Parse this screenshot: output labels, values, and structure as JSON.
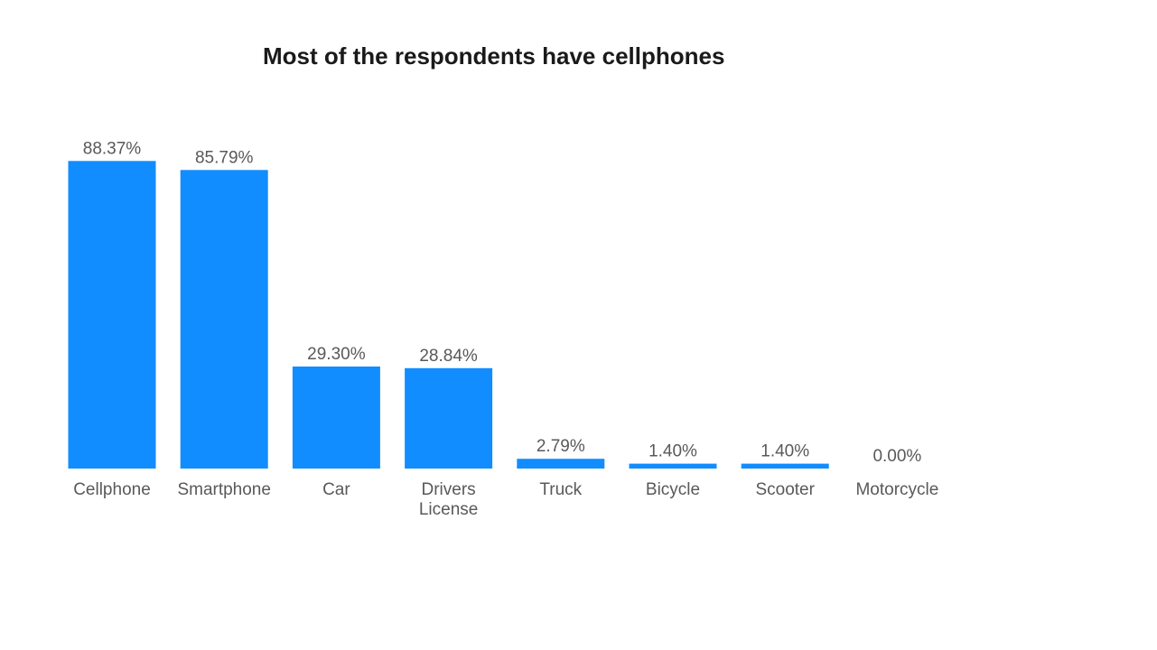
{
  "chart_data": {
    "type": "bar",
    "title": "Most of the respondents have cellphones",
    "categories": [
      "Cellphone",
      "Smartphone",
      "Car",
      "Drivers License",
      "Truck",
      "Bicycle",
      "Scooter",
      "Motorcycle"
    ],
    "category_lines": [
      [
        "Cellphone"
      ],
      [
        "Smartphone"
      ],
      [
        "Car"
      ],
      [
        "Drivers",
        "License"
      ],
      [
        "Truck"
      ],
      [
        "Bicycle"
      ],
      [
        "Scooter"
      ],
      [
        "Motorcycle"
      ]
    ],
    "values": [
      88.37,
      85.79,
      29.3,
      28.84,
      2.79,
      1.4,
      1.4,
      0.0
    ],
    "value_labels": [
      "88.37%",
      "85.79%",
      "29.30%",
      "28.84%",
      "2.79%",
      "1.40%",
      "1.40%",
      "0.00%"
    ],
    "xlabel": "",
    "ylabel": "",
    "ylim": [
      0,
      100
    ],
    "grid": false,
    "legend": "none",
    "bar_color": "#118DFF",
    "label_color": "#595959",
    "title_color": "#1a1a1a"
  }
}
